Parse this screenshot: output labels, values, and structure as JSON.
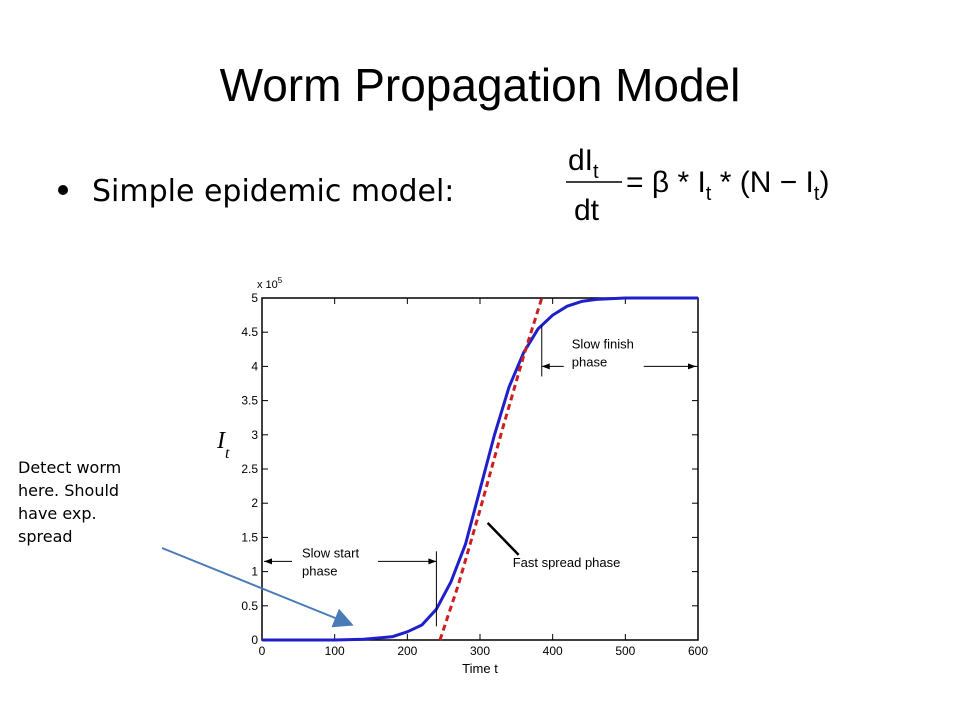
{
  "slide": {
    "title": "Worm Propagation Model",
    "bullet": "Simple epidemic model:",
    "note_lines": [
      "Detect worm",
      "here. Should",
      "have exp.",
      "spread"
    ]
  },
  "formula": {
    "lhs_num": "dI",
    "lhs_num_sub": "t",
    "lhs_den": "dt",
    "rhs_1": "= β * I",
    "rhs_sub_1": "t",
    "rhs_2": " * (N − I",
    "rhs_sub_2": "t",
    "rhs_3": ")"
  },
  "chart_data": {
    "type": "line",
    "ylabel": "I",
    "ylabel_sub": "t",
    "xlabel": "Time t",
    "y_scale_label": "x 10",
    "y_scale_exp": "5",
    "xlim": [
      0,
      600
    ],
    "ylim": [
      0,
      5
    ],
    "x_ticks": [
      "0",
      "100",
      "200",
      "300",
      "400",
      "500",
      "600"
    ],
    "y_ticks": [
      "0",
      "0.5",
      "1",
      "1.5",
      "2",
      "2.5",
      "3",
      "3.5",
      "4",
      "4.5",
      "5"
    ],
    "grid": false,
    "series": [
      {
        "style": "solid",
        "color": "#1f1fcc",
        "x": [
          0,
          100,
          140,
          180,
          200,
          220,
          240,
          260,
          280,
          300,
          320,
          340,
          360,
          380,
          400,
          420,
          440,
          460,
          500,
          550,
          600
        ],
        "y": [
          0,
          0.0,
          0.01,
          0.05,
          0.12,
          0.22,
          0.45,
          0.85,
          1.4,
          2.2,
          3.0,
          3.7,
          4.2,
          4.55,
          4.75,
          4.88,
          4.95,
          4.98,
          5.0,
          5.0,
          5.0
        ]
      },
      {
        "style": "dashed",
        "color": "#cc1f1f",
        "x": [
          245,
          270,
          300,
          330,
          360,
          385
        ],
        "y": [
          0,
          0.8,
          1.9,
          3.05,
          4.15,
          5.0
        ]
      }
    ],
    "annotations": [
      {
        "label_lines": [
          "Slow start",
          "phase"
        ],
        "x_from": 0,
        "x_to": 240,
        "y": 1.15
      },
      {
        "label_lines": [
          "Fast spread phase"
        ],
        "arrow_to_x": 305,
        "arrow_to_y": 1.8
      },
      {
        "label_lines": [
          "Slow finish",
          "phase"
        ],
        "x_from": 385,
        "x_to": 600,
        "y": 4.0
      }
    ]
  }
}
